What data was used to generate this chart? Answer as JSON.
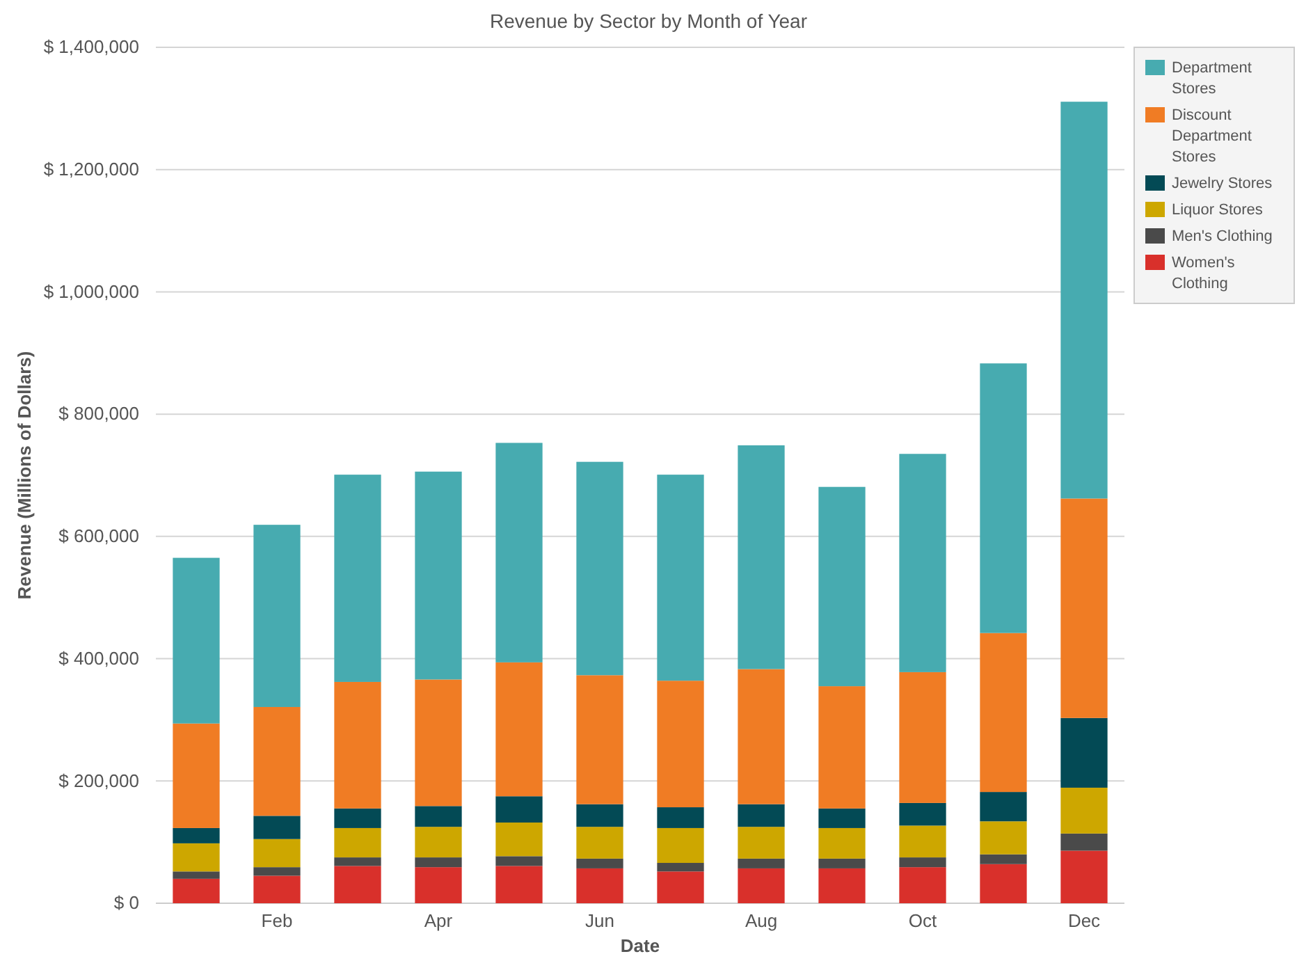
{
  "chart_data": {
    "type": "bar",
    "stacked": true,
    "title": "Revenue by Sector by Month of Year",
    "xlabel": "Date",
    "ylabel": "Revenue (Millions of Dollars)",
    "categories": [
      null,
      "Feb",
      null,
      "Apr",
      null,
      "Jun",
      null,
      "Aug",
      null,
      "Oct",
      null,
      "Dec"
    ],
    "series": [
      {
        "name": "Women's Clothing",
        "color": "#d9302b",
        "values": [
          40000,
          45000,
          61000,
          59000,
          61000,
          57000,
          52000,
          57000,
          57000,
          59000,
          64000,
          86000
        ]
      },
      {
        "name": "Men's Clothing",
        "color": "#4a4a4a",
        "values": [
          12000,
          14000,
          14000,
          16000,
          16000,
          16000,
          14000,
          16000,
          16000,
          16000,
          16000,
          28000
        ]
      },
      {
        "name": "Liquor Stores",
        "color": "#cda700",
        "values": [
          46000,
          46000,
          48000,
          50000,
          55000,
          52000,
          57000,
          52000,
          50000,
          52000,
          54000,
          75000
        ]
      },
      {
        "name": "Jewelry Stores",
        "color": "#034a55",
        "values": [
          25000,
          38000,
          32000,
          34000,
          43000,
          37000,
          34000,
          37000,
          32000,
          37000,
          48000,
          114000
        ]
      },
      {
        "name": "Discount Department Stores",
        "color": "#f07c24",
        "values": [
          171000,
          178000,
          207000,
          207000,
          219000,
          211000,
          207000,
          221000,
          200000,
          214000,
          260000,
          359000
        ]
      },
      {
        "name": "Department Stores",
        "color": "#47abb0",
        "values": [
          271000,
          298000,
          339000,
          340000,
          359000,
          349000,
          337000,
          366000,
          326000,
          357000,
          441000,
          649000
        ]
      }
    ],
    "ylim": [
      0,
      1400000
    ],
    "yticks": [
      {
        "value": 0,
        "label": "$ 0"
      },
      {
        "value": 200000,
        "label": "$ 200,000"
      },
      {
        "value": 400000,
        "label": "$ 400,000"
      },
      {
        "value": 600000,
        "label": "$ 600,000"
      },
      {
        "value": 800000,
        "label": "$ 800,000"
      },
      {
        "value": 1000000,
        "label": "$ 1,000,000"
      },
      {
        "value": 1200000,
        "label": "$ 1,200,000"
      },
      {
        "value": 1400000,
        "label": "$ 1,400,000"
      }
    ],
    "grid": "y",
    "legend": "right"
  }
}
